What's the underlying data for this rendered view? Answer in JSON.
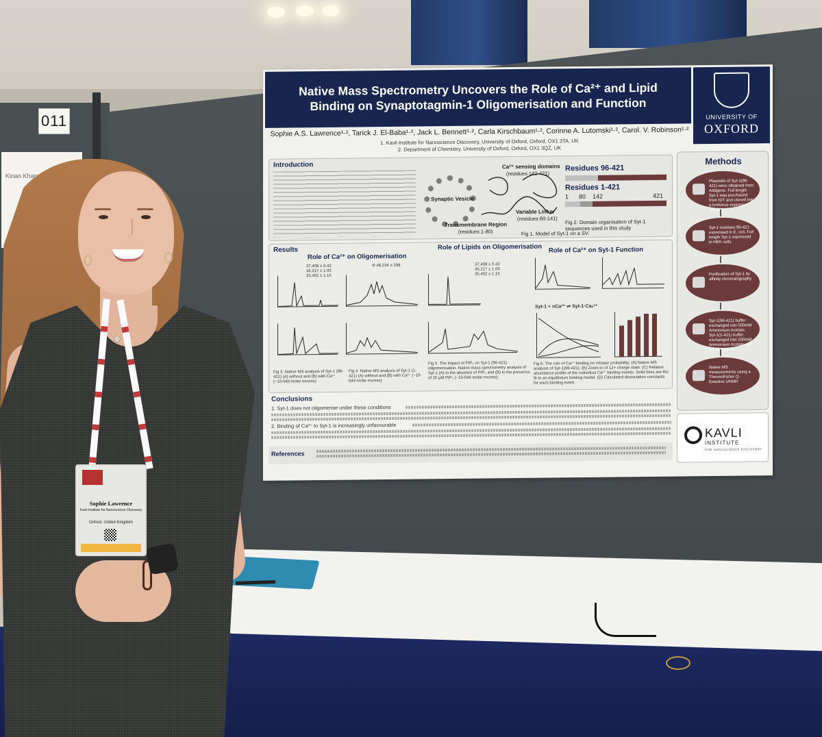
{
  "booth": {
    "number": "011",
    "name_card": "Kinan Khanzada"
  },
  "poster": {
    "title_line1": "Native Mass Spectrometry Uncovers the Role of Ca²⁺ and Lipid",
    "title_line2": "Binding on Synaptotagmin-1 Oligomerisation and Function",
    "authors": "Sophie A.S. Lawrence¹·², Tarick J. El-Baba¹·², Jack L. Bennett¹·², Carla Kirschbaum¹·², Corinne A. Lutomski¹·², Carol. V. Robinson¹·²",
    "affiliation1": "1. Kavli Institute for Nanoscience Discovery, University of Oxford, Oxford, OX1 3TA, UK",
    "affiliation2": "2. Department of Chemistry, University of Oxford, Oxford, OX1 3QZ, UK",
    "oxford_line1": "UNIVERSITY OF",
    "oxford_line2": "OXFORD",
    "introduction": {
      "heading": "Introduction",
      "synaptic_vesicle": "Synaptic Vesicle",
      "ca_domains": "Ca²⁺ sensing domains",
      "ca_domains_range": "(residues 142-421)",
      "variable_linker": "Variable Linker",
      "variable_linker_range": "(residues 80-141)",
      "transmembrane": "Transmembrane Region",
      "transmembrane_range": "(residues 1-80)",
      "fig1": "Fig 1. Model of Syt-1 on a SV.",
      "residues_a": "Residues 96-421",
      "residues_b": "Residues 1-421",
      "residue_numbers": [
        "1",
        "80",
        "142",
        "421"
      ],
      "fig2": "Fig 2. Domain organisation of Syt-1 sequences used in this study"
    },
    "methods": {
      "heading": "Methods",
      "steps": [
        "Plasmids of Syt-1(96-421) were obtained from Addgene. Full length Syt-1 was purchased from IDT and cloned into a lentivirus expression vector.",
        "Syt-1 residues 96-421 expressed in E. coli. Full length Syt-1 expressed in HEK cells.",
        "Purification of Syt-1 by affinity chromatography",
        "Syt-1(96-421) buffer exchanged into 500mM Ammonium Acetate. Syt-1(1-421) buffer exchanged into 200mM Ammonium Acetate with G1 detergent.",
        "Native MS measurements using a ThermoFisher Q-Exactive UHMR"
      ]
    },
    "results": {
      "heading": "Results",
      "role_ca_oligo": "Role of Ca²⁺ on Oligomerisation",
      "role_lipids": "Role of Lipids on Oligomerisation",
      "role_ca_function": "Role of Ca²⁺ on Syt-1 Function",
      "masses_a": "37,408 ± 0.42\n36,217 ± 1.00\n35,462 ± 1.15",
      "mass_b": "Φ 48,234 ± 298",
      "equation": "Syt-1 + nCa²⁺ ⇌ Syt-1·Caₙ²⁺",
      "fig3": "Fig 3. Native MS analysis of Syt-1 (96-421) (A) without and (B) with Ca²⁺ (~10-fold molar excess)",
      "fig4": "Fig 4. Native MS analysis of Syt-1 (1-421) (A) without and (B) with Ca²⁺ (~10-fold molar excess)",
      "fig5": "Fig 5. The impact of PIP₂ on Syt-1 (96-421) oligomerisation. Native mass spectrometry analysis of Syt-1 (A) in the absence of PIP₂ and (B) in the presence of 20 µM PIP₂ (~10-fold molar excess)",
      "fig6": "Fig 6. The role of Ca²⁺ binding on release probability. (A) Native MS analysis of Syt-1(96-421). (B) Zoom-in of 12+ charge state. (C) Relative abundance profile of the individual Ca²⁺ binding events. Solid lines are the fit to an equilibrium binding model. (D) Calculated dissociation constants for each binding event.",
      "bound_bars": [
        0.72,
        0.86,
        0.94,
        1.0,
        1.0
      ]
    },
    "conclusions": {
      "heading": "Conclusions",
      "point1": "1. Syt-1 does not oligomerise under these conditions",
      "point2": "2. Binding of Ca²⁺ to Syt-1 is increasingly unfavourable"
    },
    "references": {
      "heading": "References"
    },
    "kavli": {
      "word": "KAVLI",
      "sub": "INSTITUTE",
      "tiny": "FOR NANOSCIENCE DISCOVERY"
    }
  },
  "badge": {
    "name": "Sophie Lawrence",
    "org": "Kavli Institute for Nanoscience Discovery",
    "location": "Oxford, United Kingdom"
  }
}
